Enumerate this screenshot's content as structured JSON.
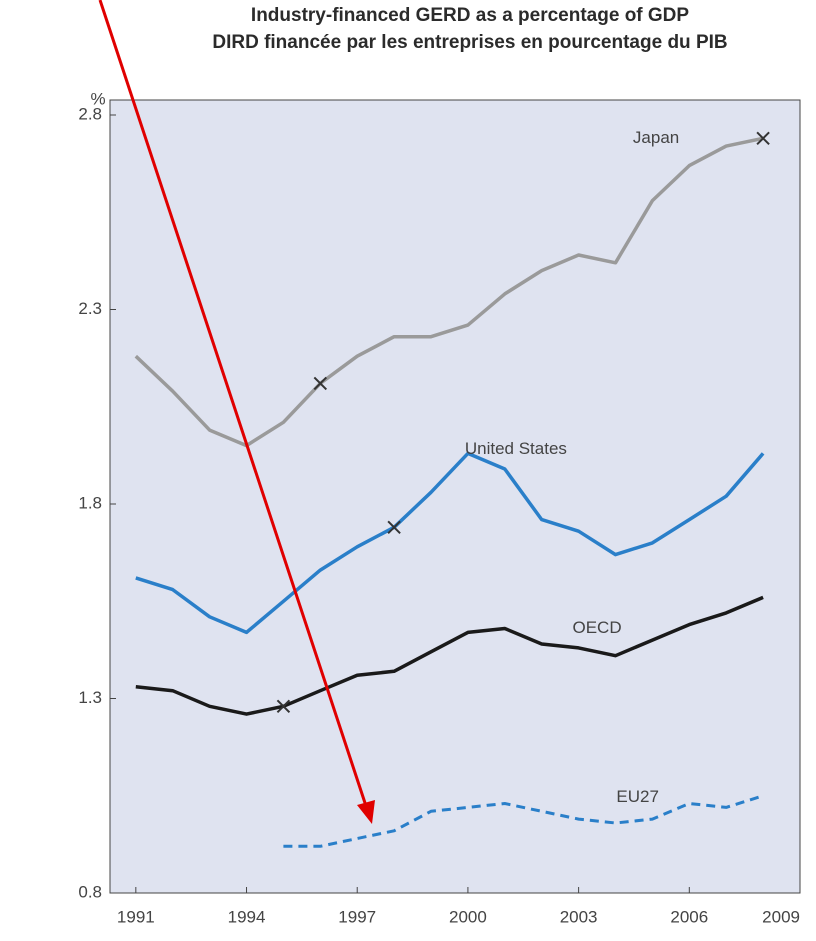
{
  "chart_data": {
    "type": "line",
    "title": "Industry-financed GERD as a percentage of GDP",
    "subtitle": "DIRD financée par les entreprises en pourcentage du PIB",
    "y_label": "%",
    "x": [
      1991,
      1992,
      1993,
      1994,
      1995,
      1996,
      1997,
      1998,
      1999,
      2000,
      2001,
      2002,
      2003,
      2004,
      2005,
      2006,
      2007,
      2008
    ],
    "series": [
      {
        "name": "Japan",
        "color": "#9a9a9a",
        "dash": false,
        "markers": [
          1996,
          2008
        ],
        "values": [
          2.18,
          2.09,
          1.99,
          1.95,
          2.01,
          2.11,
          2.18,
          2.23,
          2.23,
          2.26,
          2.34,
          2.4,
          2.44,
          2.42,
          2.58,
          2.67,
          2.72,
          2.74
        ]
      },
      {
        "name": "United States",
        "color": "#2a7fc9",
        "dash": false,
        "markers": [
          1998
        ],
        "values": [
          1.61,
          1.58,
          1.51,
          1.47,
          1.55,
          1.63,
          1.69,
          1.74,
          1.83,
          1.93,
          1.89,
          1.76,
          1.73,
          1.67,
          1.7,
          1.76,
          1.82,
          1.93
        ]
      },
      {
        "name": "OECD",
        "color": "#1a1a1a",
        "dash": false,
        "markers": [
          1995
        ],
        "values": [
          1.33,
          1.32,
          1.28,
          1.26,
          1.28,
          1.32,
          1.36,
          1.37,
          1.42,
          1.47,
          1.48,
          1.44,
          1.43,
          1.41,
          1.45,
          1.49,
          1.52,
          1.56
        ]
      },
      {
        "name": "EU27",
        "color": "#2a7fc9",
        "dash": true,
        "markers": [],
        "values": [
          null,
          null,
          null,
          null,
          0.92,
          0.92,
          0.94,
          0.96,
          1.01,
          1.02,
          1.03,
          1.01,
          0.99,
          0.98,
          0.99,
          1.03,
          1.02,
          1.05
        ]
      }
    ],
    "xlim": [
      1990.3,
      2009
    ],
    "xticks": [
      1991,
      1994,
      1997,
      2000,
      2003,
      2006,
      2009
    ],
    "ylim": [
      0.8,
      2.8
    ],
    "yticks": [
      0.8,
      {
        "value": 1.3,
        "label": "1.3"
      },
      {
        "value": 1.8,
        "label": "1.8"
      },
      {
        "value": 2.3,
        "label": "2.3"
      },
      {
        "value": 2.8,
        "label": "2.8"
      }
    ],
    "plot_background": "#dfe3f0"
  }
}
